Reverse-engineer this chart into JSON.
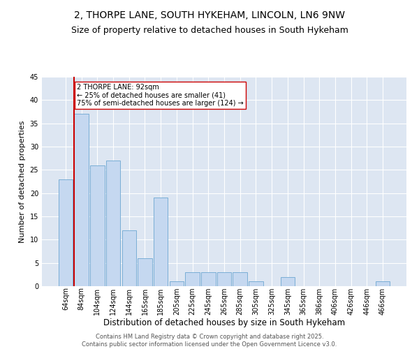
{
  "title": "2, THORPE LANE, SOUTH HYKEHAM, LINCOLN, LN6 9NW",
  "subtitle": "Size of property relative to detached houses in South Hykeham",
  "xlabel": "Distribution of detached houses by size in South Hykeham",
  "ylabel": "Number of detached properties",
  "categories": [
    "64sqm",
    "84sqm",
    "104sqm",
    "124sqm",
    "144sqm",
    "165sqm",
    "185sqm",
    "205sqm",
    "225sqm",
    "245sqm",
    "265sqm",
    "285sqm",
    "305sqm",
    "325sqm",
    "345sqm",
    "365sqm",
    "386sqm",
    "406sqm",
    "426sqm",
    "446sqm",
    "466sqm"
  ],
  "values": [
    23,
    37,
    26,
    27,
    12,
    6,
    19,
    1,
    3,
    3,
    3,
    3,
    1,
    0,
    2,
    0,
    0,
    0,
    0,
    0,
    1
  ],
  "bar_color": "#c5d8f0",
  "bar_edgecolor": "#7aaed6",
  "vline_color": "#cc0000",
  "annotation_line1": "2 THORPE LANE: 92sqm",
  "annotation_line2": "← 25% of detached houses are smaller (41)",
  "annotation_line3": "75% of semi-detached houses are larger (124) →",
  "annotation_box_color": "#cc0000",
  "ylim": [
    0,
    45
  ],
  "yticks": [
    0,
    5,
    10,
    15,
    20,
    25,
    30,
    35,
    40,
    45
  ],
  "background_color": "#dde6f2",
  "footer_line1": "Contains HM Land Registry data © Crown copyright and database right 2025.",
  "footer_line2": "Contains public sector information licensed under the Open Government Licence v3.0.",
  "title_fontsize": 10,
  "subtitle_fontsize": 9,
  "xlabel_fontsize": 8.5,
  "ylabel_fontsize": 8,
  "tick_fontsize": 7,
  "annotation_fontsize": 7,
  "footer_fontsize": 6
}
